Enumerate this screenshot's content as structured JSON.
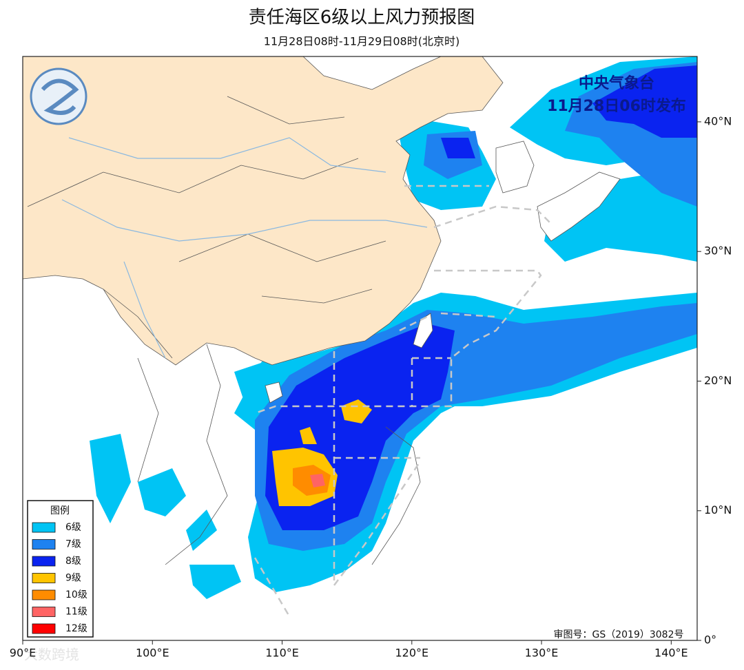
{
  "header": {
    "title": "责任海区6级以上风力预报图",
    "subtitle": "11月28日08时-11月29日08时(北京时)"
  },
  "issuer": {
    "name": "中央气象台",
    "issued": "11月28日06时发布"
  },
  "map": {
    "lon_ticks": [
      {
        "value": 90,
        "label": "90°E"
      },
      {
        "value": 100,
        "label": "100°E"
      },
      {
        "value": 110,
        "label": "110°E"
      },
      {
        "value": 120,
        "label": "120°E"
      },
      {
        "value": 130,
        "label": "130°E"
      },
      {
        "value": 140,
        "label": "140°E"
      }
    ],
    "lat_ticks": [
      {
        "value": 0,
        "label": "0°"
      },
      {
        "value": 10,
        "label": "10°N"
      },
      {
        "value": 20,
        "label": "20°N"
      },
      {
        "value": 30,
        "label": "30°N"
      },
      {
        "value": 40,
        "label": "40°N"
      }
    ],
    "lon_range": [
      90,
      142
    ],
    "lat_range": [
      0,
      45
    ]
  },
  "legend": {
    "title": "图例",
    "items": [
      {
        "label": "6级",
        "color": "#00c4f4"
      },
      {
        "label": "7级",
        "color": "#1e82f0"
      },
      {
        "label": "8级",
        "color": "#0a23f0"
      },
      {
        "label": "9级",
        "color": "#ffc400"
      },
      {
        "label": "10级",
        "color": "#ff8c00"
      },
      {
        "label": "11级",
        "color": "#ff6464"
      },
      {
        "label": "12级",
        "color": "#ff0000"
      }
    ]
  },
  "approval": "审图号：GS（2019）3082号",
  "watermark": "大数跨境"
}
